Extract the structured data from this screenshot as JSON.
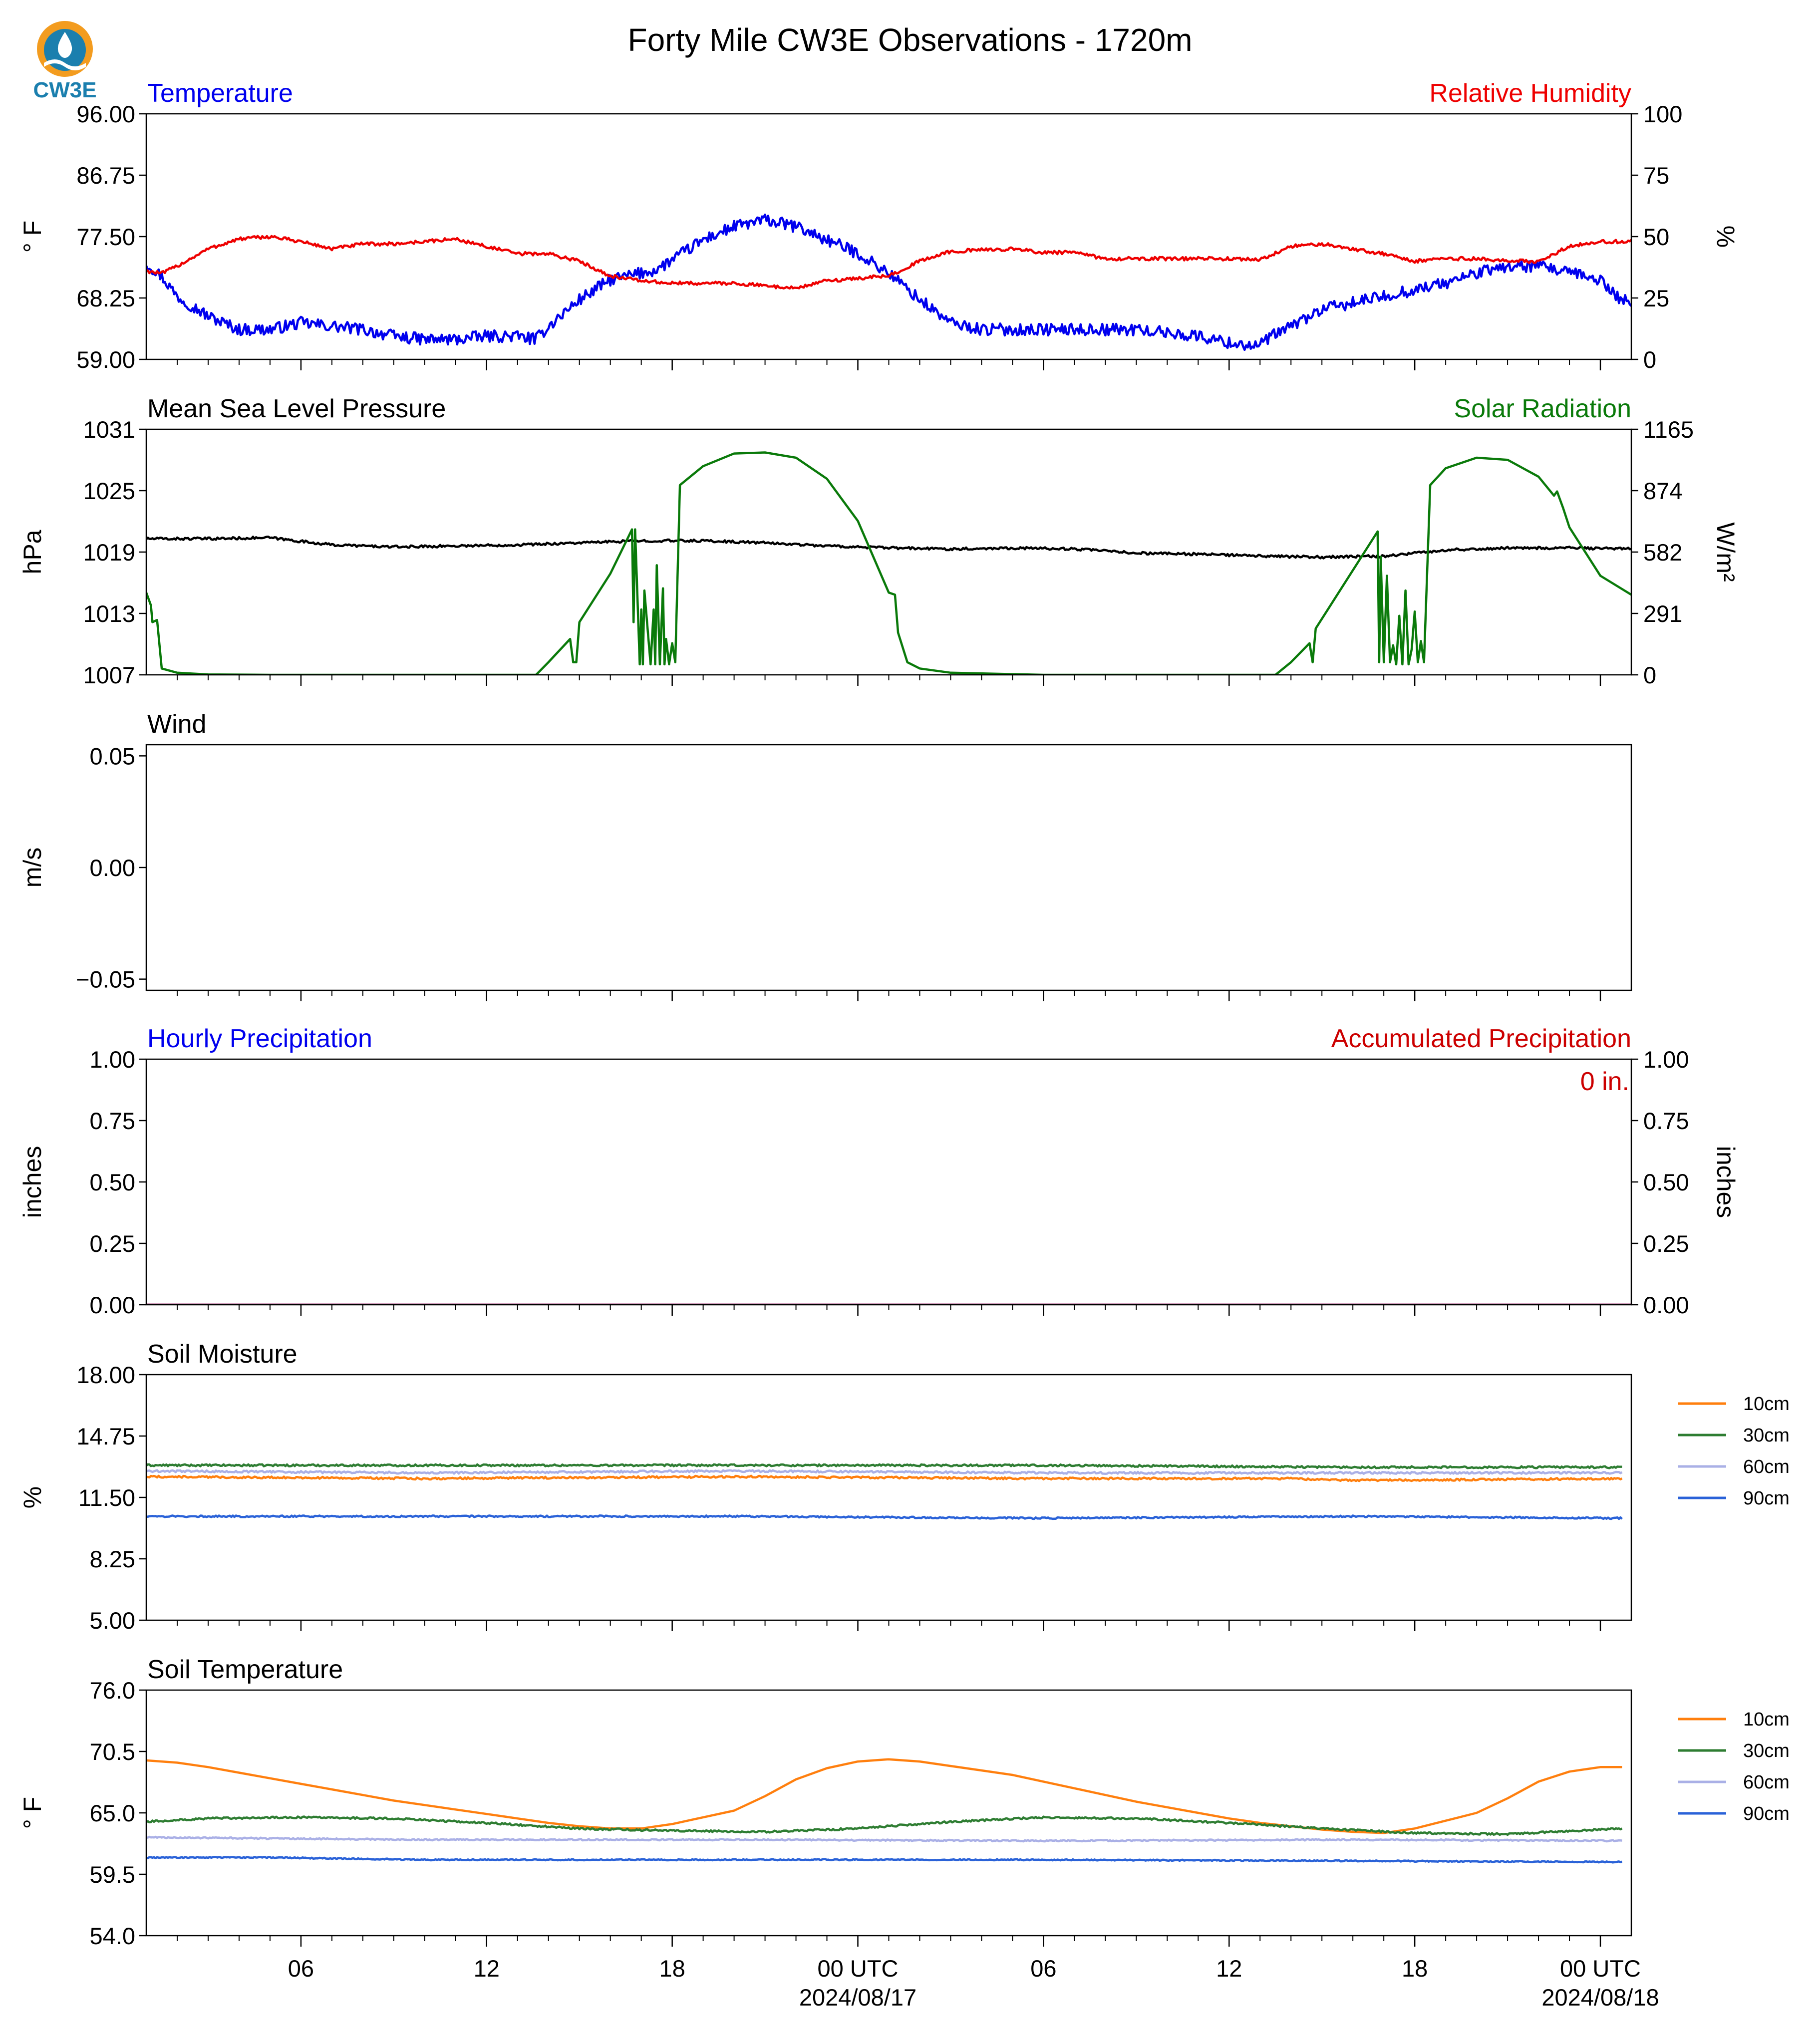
{
  "page_title": "Forty Mile CW3E Observations - 1720m",
  "logo": {
    "text": "CW3E",
    "ring_color": "#f39c1f",
    "body_color": "#1b7fae"
  },
  "colors": {
    "temperature": "#0000ee",
    "humidity": "#ee0000",
    "pressure": "#000000",
    "solar": "#0a7a0a",
    "precip_hourly": "#0000ee",
    "precip_accum": "#cc0000",
    "soil_10cm": "#ff7f0e",
    "soil_30cm": "#2e7d32",
    "soil_60cm": "#aab0e6",
    "soil_90cm": "#2a62d8"
  },
  "time_axis": {
    "tick_labels": [
      "06",
      "12",
      "18",
      "00 UTC",
      "06",
      "12",
      "18",
      "00 UTC"
    ],
    "tick_hours": [
      6,
      12,
      18,
      24,
      30,
      36,
      42,
      48
    ],
    "date_labels": [
      {
        "hour": 24,
        "text": "2024/08/17"
      },
      {
        "hour": 48,
        "text": "2024/08/18"
      }
    ],
    "range_hours": [
      1,
      49
    ]
  },
  "chart_data": [
    {
      "id": "temp_rh",
      "type": "line",
      "title_left": "Temperature",
      "title_right": "Relative Humidity",
      "ylabel_left": "° F",
      "ylabel_right": "%",
      "ylim_left": [
        59,
        96
      ],
      "yticks_left": [
        "96.00",
        "86.75",
        "77.50",
        "68.25",
        "59.00"
      ],
      "ylim_right": [
        0,
        100
      ],
      "yticks_right": [
        "100",
        "75",
        "50",
        "25",
        "0"
      ],
      "series": [
        {
          "name": "Temperature",
          "axis": "left",
          "color_key": "temperature",
          "noise": 0.9,
          "x": [
            1,
            1.5,
            2,
            3,
            4,
            5,
            6,
            7,
            8,
            9,
            10,
            11,
            12,
            13,
            13.6,
            14,
            15,
            16,
            17,
            17.5,
            18,
            19,
            20,
            21,
            22,
            23,
            24,
            25,
            26,
            27,
            28,
            29,
            30,
            31,
            32,
            33,
            34,
            35,
            36,
            37,
            37.2,
            38,
            39,
            40,
            41,
            42,
            43,
            44,
            45,
            46,
            47,
            48,
            48.5,
            49
          ],
          "y": [
            73.5,
            71.5,
            68.5,
            65.5,
            63.5,
            63.5,
            64.5,
            64,
            63.5,
            62.5,
            62,
            62,
            62.5,
            62.5,
            62,
            64,
            68,
            71,
            72,
            72.5,
            74,
            77,
            79,
            80,
            79,
            77,
            75,
            72,
            68,
            64.5,
            63.5,
            63.5,
            63.5,
            63.5,
            63.5,
            63.5,
            63,
            62.5,
            61.5,
            61,
            62,
            64,
            66.5,
            67.5,
            68.5,
            69.5,
            70.5,
            72,
            73,
            73,
            72,
            71,
            68.5,
            67.5
          ]
        },
        {
          "name": "Relative Humidity",
          "axis": "right",
          "color_key": "humidity",
          "noise": 0.7,
          "x": [
            1,
            1.5,
            2,
            3,
            4,
            5,
            6,
            7,
            8,
            9,
            10,
            11,
            12,
            13,
            14,
            15,
            16,
            17,
            18,
            19,
            20,
            21,
            22,
            23,
            24,
            25,
            26,
            27,
            28,
            29,
            30,
            31,
            32,
            33,
            34,
            35,
            36,
            37,
            38,
            39,
            40,
            41,
            42,
            43,
            44,
            45,
            46,
            47,
            48,
            49
          ],
          "y": [
            36,
            35,
            38,
            45,
            49,
            50,
            48,
            45,
            47,
            47,
            48,
            49,
            46,
            43,
            43,
            40,
            34,
            32,
            31,
            31,
            31,
            30,
            29,
            32,
            33,
            34,
            40,
            44,
            44.5,
            45,
            43.5,
            43.5,
            41,
            41,
            41,
            41,
            41,
            40.5,
            46,
            47,
            45,
            43,
            40,
            41,
            41,
            40,
            40,
            46,
            48,
            48
          ]
        }
      ]
    },
    {
      "id": "pressure_solar",
      "type": "line",
      "title_left": "Mean Sea Level Pressure",
      "title_right": "Solar Radiation",
      "ylabel_left": "hPa",
      "ylabel_right": "W/m²",
      "ylim_left": [
        1007,
        1031
      ],
      "yticks_left": [
        "1031",
        "1025",
        "1019",
        "1013",
        "1007"
      ],
      "ylim_right": [
        0,
        1165
      ],
      "yticks_right": [
        "1165",
        "874",
        "582",
        "291",
        "0"
      ],
      "series": [
        {
          "name": "Mean Sea Level Pressure",
          "axis": "left",
          "color_key": "pressure",
          "noise": 0.12,
          "x": [
            1,
            3,
            5,
            7,
            9,
            11,
            13,
            15,
            17,
            19,
            21,
            23,
            25,
            27,
            29,
            31,
            33,
            35,
            37,
            39,
            41,
            43,
            45,
            47,
            49
          ],
          "y": [
            1020.3,
            1020.3,
            1020.4,
            1019.7,
            1019.5,
            1019.6,
            1019.7,
            1019.9,
            1020.1,
            1020.1,
            1019.9,
            1019.6,
            1019.4,
            1019.3,
            1019.4,
            1019.3,
            1018.9,
            1018.8,
            1018.6,
            1018.5,
            1018.6,
            1019.2,
            1019.4,
            1019.4,
            1019.3
          ]
        },
        {
          "name": "Solar Radiation",
          "axis": "right",
          "color_key": "solar",
          "noise": 0,
          "x": [
            1,
            1.15,
            1.2,
            1.35,
            1.5,
            2,
            3,
            5,
            8,
            10,
            13,
            13.6,
            14,
            14.7,
            14.8,
            14.9,
            15,
            16,
            16.7,
            16.75,
            16.8,
            16.95,
            17,
            17.05,
            17.1,
            17.3,
            17.4,
            17.45,
            17.5,
            17.6,
            17.7,
            17.75,
            17.8,
            17.9,
            18,
            18.1,
            18.25,
            19,
            20,
            21,
            22,
            23,
            24,
            25,
            25.2,
            25.3,
            25.6,
            26,
            27,
            30,
            33,
            36,
            37.5,
            38,
            38.6,
            38.7,
            38.8,
            40.8,
            40.85,
            40.9,
            41,
            41.1,
            41.2,
            41.3,
            41.4,
            41.5,
            41.6,
            41.7,
            41.8,
            41.9,
            42,
            42.1,
            42.2,
            42.3,
            42.5,
            43,
            44,
            45,
            46,
            46.5,
            46.6,
            46.7,
            46.8,
            47,
            48,
            49
          ],
          "y": [
            390,
            330,
            250,
            260,
            30,
            10,
            2,
            0,
            0,
            0,
            0,
            0,
            60,
            170,
            60,
            60,
            250,
            480,
            690,
            250,
            690,
            50,
            310,
            50,
            400,
            50,
            310,
            50,
            520,
            50,
            410,
            50,
            170,
            50,
            150,
            60,
            900,
            990,
            1050,
            1055,
            1030,
            930,
            730,
            390,
            380,
            200,
            60,
            30,
            10,
            0,
            0,
            0,
            0,
            60,
            150,
            60,
            220,
            680,
            60,
            560,
            60,
            470,
            60,
            140,
            50,
            280,
            50,
            400,
            50,
            120,
            300,
            60,
            160,
            60,
            900,
            980,
            1030,
            1020,
            940,
            850,
            870,
            830,
            790,
            700,
            470,
            380
          ]
        }
      ]
    },
    {
      "id": "wind",
      "type": "line",
      "title_left": "Wind",
      "ylabel_left": "m/s",
      "ylim_left": [
        -0.055,
        0.055
      ],
      "ytick_values": [
        0.05,
        0,
        -0.05
      ],
      "yticks_left": [
        "0.05",
        "0.00",
        "−0.05"
      ],
      "series": []
    },
    {
      "id": "precip",
      "type": "line",
      "title_left": "Hourly Precipitation",
      "title_right": "Accumulated Precipitation",
      "annotation": "0 in.",
      "ylabel_left": "inches",
      "ylabel_right": "inches",
      "ylim_left": [
        0,
        1
      ],
      "yticks_left": [
        "1.00",
        "0.75",
        "0.50",
        "0.25",
        "0.00"
      ],
      "ylim_right": [
        0,
        1
      ],
      "yticks_right": [
        "1.00",
        "0.75",
        "0.50",
        "0.25",
        "0.00"
      ],
      "series": [
        {
          "name": "Hourly Precipitation",
          "axis": "left",
          "color_key": "precip_hourly",
          "noise": 0,
          "x": [
            1,
            49
          ],
          "y": [
            0,
            0
          ]
        },
        {
          "name": "Accumulated Precipitation",
          "axis": "left",
          "color_key": "precip_accum",
          "noise": 0,
          "x": [
            1,
            49
          ],
          "y": [
            0,
            0
          ]
        }
      ]
    },
    {
      "id": "soil_moisture",
      "type": "line",
      "title_left": "Soil Moisture",
      "ylabel_left": "%",
      "ylim_left": [
        5,
        18
      ],
      "yticks_left": [
        "18.00",
        "14.75",
        "11.50",
        "8.25",
        "5.00"
      ],
      "legend": [
        "10cm",
        "30cm",
        "60cm",
        "90cm"
      ],
      "series": [
        {
          "name": "10cm",
          "axis": "left",
          "color_key": "soil_10cm",
          "noise": 0.05,
          "x": [
            1,
            10,
            20,
            30,
            38,
            40,
            48.7
          ],
          "y": [
            12.6,
            12.5,
            12.6,
            12.5,
            12.5,
            12.4,
            12.5
          ]
        },
        {
          "name": "30cm",
          "axis": "left",
          "color_key": "soil_30cm",
          "noise": 0.05,
          "x": [
            1,
            10,
            20,
            30,
            40,
            48.7
          ],
          "y": [
            13.2,
            13.2,
            13.2,
            13.2,
            13.1,
            13.1
          ]
        },
        {
          "name": "60cm",
          "axis": "left",
          "color_key": "soil_60cm",
          "noise": 0.05,
          "x": [
            1,
            10,
            20,
            30,
            40,
            48.7
          ],
          "y": [
            12.9,
            12.8,
            12.9,
            12.8,
            12.8,
            12.8
          ]
        },
        {
          "name": "90cm",
          "axis": "left",
          "color_key": "soil_90cm",
          "noise": 0.04,
          "x": [
            1,
            10,
            20,
            30,
            40,
            48.7
          ],
          "y": [
            10.5,
            10.5,
            10.5,
            10.4,
            10.5,
            10.4
          ]
        }
      ]
    },
    {
      "id": "soil_temperature",
      "type": "line",
      "title_left": "Soil Temperature",
      "ylabel_left": "° F",
      "ylim_left": [
        54,
        76
      ],
      "yticks_left": [
        "76.0",
        "70.5",
        "65.0",
        "59.5",
        "54.0"
      ],
      "legend": [
        "10cm",
        "30cm",
        "60cm",
        "90cm"
      ],
      "series": [
        {
          "name": "10cm",
          "axis": "left",
          "color_key": "soil_10cm",
          "noise": 0,
          "x": [
            1,
            2,
            3,
            4,
            5,
            6,
            7,
            8,
            9,
            10,
            11,
            12,
            13,
            14,
            15,
            16,
            17,
            18,
            19,
            20,
            21,
            22,
            23,
            24,
            25,
            26,
            27,
            28,
            29,
            30,
            31,
            32,
            33,
            34,
            35,
            36,
            37,
            38,
            39,
            40,
            41,
            42,
            43,
            44,
            45,
            46,
            47,
            48,
            48.7
          ],
          "y": [
            69.7,
            69.5,
            69.1,
            68.6,
            68.1,
            67.6,
            67.1,
            66.6,
            66.1,
            65.7,
            65.3,
            64.9,
            64.5,
            64.1,
            63.8,
            63.6,
            63.6,
            64.0,
            64.6,
            65.2,
            66.5,
            68.0,
            69.0,
            69.6,
            69.8,
            69.6,
            69.2,
            68.8,
            68.4,
            67.8,
            67.2,
            66.6,
            66.0,
            65.5,
            65.0,
            64.5,
            64.1,
            63.8,
            63.5,
            63.3,
            63.2,
            63.6,
            64.3,
            65.0,
            66.3,
            67.8,
            68.7,
            69.1,
            69.1
          ]
        },
        {
          "name": "30cm",
          "axis": "left",
          "color_key": "soil_30cm",
          "noise": 0.08,
          "x": [
            1,
            3,
            6,
            9,
            12,
            15,
            18,
            21,
            24,
            27,
            30,
            33,
            36,
            39,
            42,
            45,
            48.7
          ],
          "y": [
            64.2,
            64.5,
            64.6,
            64.5,
            64.1,
            63.6,
            63.4,
            63.3,
            63.6,
            64.2,
            64.6,
            64.5,
            64.1,
            63.6,
            63.2,
            63.1,
            63.6
          ]
        },
        {
          "name": "60cm",
          "axis": "left",
          "color_key": "soil_60cm",
          "noise": 0.06,
          "x": [
            1,
            10,
            20,
            30,
            40,
            48.7
          ],
          "y": [
            62.8,
            62.6,
            62.6,
            62.5,
            62.6,
            62.5
          ]
        },
        {
          "name": "90cm",
          "axis": "left",
          "color_key": "soil_90cm",
          "noise": 0.05,
          "x": [
            1,
            5,
            10,
            20,
            30,
            40,
            48.7
          ],
          "y": [
            61.0,
            61.0,
            60.8,
            60.8,
            60.8,
            60.7,
            60.6
          ]
        }
      ]
    }
  ]
}
